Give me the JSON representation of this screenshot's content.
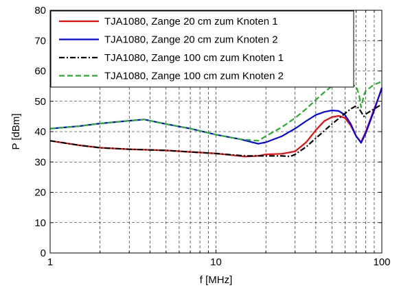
{
  "chart_data": {
    "type": "line",
    "title": "",
    "xlabel": "f [MHz]",
    "ylabel": "P [dBm]",
    "xscale": "log",
    "xlim": [
      1,
      100
    ],
    "ylim": [
      0,
      80
    ],
    "xticks": [
      1,
      10,
      100
    ],
    "xtick_labels": [
      "1",
      "10",
      "100"
    ],
    "yticks": [
      0,
      10,
      20,
      30,
      40,
      50,
      60,
      70,
      80
    ],
    "ytick_labels": [
      "0",
      "10",
      "20",
      "30",
      "40",
      "50",
      "60",
      "70",
      "80"
    ],
    "grid": true,
    "grid_style": "dashed",
    "legend_position": "top",
    "series": [
      {
        "name": "TJA1080, Zange 20 cm zum Knoten 1",
        "color": "#ff0000",
        "dash": "solid",
        "x": [
          1,
          1.5,
          2,
          3,
          5,
          7,
          10,
          15,
          18,
          20,
          25,
          30,
          35,
          40,
          45,
          50,
          55,
          60,
          65,
          70,
          75,
          80,
          90,
          100
        ],
        "y": [
          37,
          35.5,
          34.7,
          34.2,
          33.8,
          33.3,
          32.8,
          31.8,
          32.0,
          32.5,
          32.7,
          33.5,
          36.5,
          40.5,
          43.5,
          44.8,
          45.2,
          44.5,
          42.0,
          38.5,
          36.5,
          40.0,
          47.5,
          54.0
        ]
      },
      {
        "name": "TJA1080, Zange 20 cm zum Knoten 2",
        "color": "#0000ff",
        "dash": "solid",
        "x": [
          1,
          1.5,
          2,
          3,
          3.7,
          5,
          7,
          10,
          14,
          18,
          20,
          25,
          30,
          35,
          40,
          45,
          50,
          55,
          60,
          65,
          70,
          75,
          80,
          90,
          100
        ],
        "y": [
          41,
          41.8,
          42.7,
          43.6,
          44.0,
          42.5,
          41.0,
          39.0,
          37.5,
          36.0,
          36.5,
          38.5,
          41.0,
          43.5,
          45.5,
          46.5,
          47.0,
          46.8,
          45.5,
          42.5,
          38.5,
          36.3,
          39.5,
          47.0,
          54.5
        ]
      },
      {
        "name": "TJA1080, Zange 100 cm zum Knoten 1",
        "color": "#000000",
        "dash": "dashdot",
        "x": [
          1,
          1.5,
          2,
          3,
          5,
          7,
          10,
          15,
          20,
          25,
          28,
          30,
          35,
          40,
          50,
          60,
          65,
          70,
          73,
          75,
          78,
          80,
          90,
          100
        ],
        "y": [
          37,
          35.5,
          34.7,
          34.2,
          33.8,
          33.3,
          32.8,
          32.0,
          32.0,
          32.0,
          31.8,
          32.5,
          35.0,
          37.8,
          42.5,
          46.0,
          47.5,
          48.5,
          47.5,
          46.5,
          45.0,
          45.8,
          47.5,
          49.0
        ]
      },
      {
        "name": "TJA1080, Zange 100 cm zum Knoten 2",
        "color": "#22b222",
        "dash": "dashed",
        "x": [
          1,
          1.5,
          2,
          3,
          3.7,
          5,
          7,
          10,
          14,
          18,
          20,
          25,
          30,
          35,
          40,
          45,
          50,
          55,
          60,
          65,
          70,
          73,
          75,
          78,
          80,
          90,
          100
        ],
        "y": [
          41,
          41.8,
          42.7,
          43.6,
          44.0,
          42.5,
          41.0,
          39.0,
          37.5,
          37.0,
          38.5,
          41.5,
          44.5,
          47.5,
          50.5,
          53.0,
          55.0,
          56.0,
          56.0,
          55.5,
          55.0,
          52.0,
          48.0,
          52.0,
          53.5,
          55.5,
          56.5
        ]
      }
    ]
  }
}
